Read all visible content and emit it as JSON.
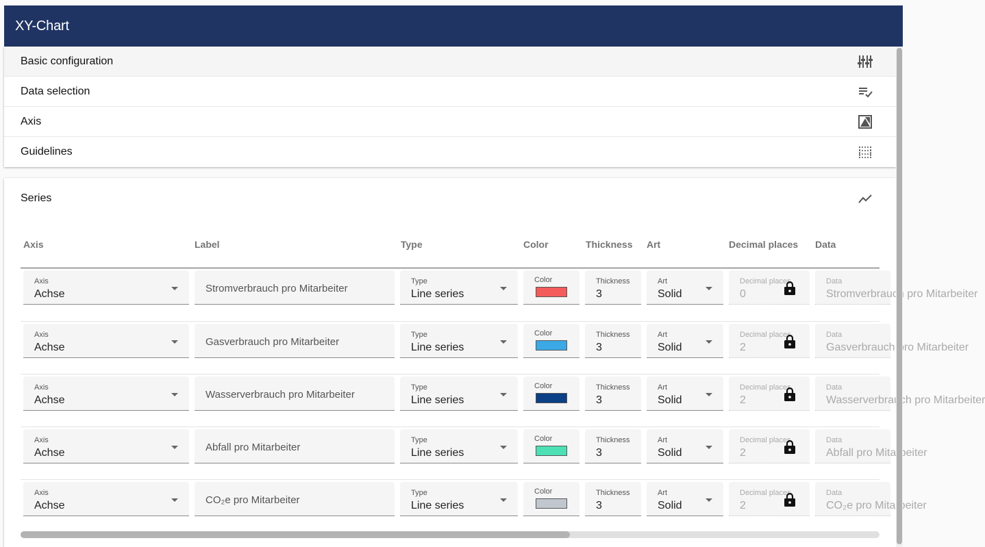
{
  "header": {
    "title": "XY-Chart"
  },
  "accordion": [
    {
      "label": "Basic configuration",
      "icon": "tune-icon"
    },
    {
      "label": "Data selection",
      "icon": "playlist-check-icon"
    },
    {
      "label": "Axis",
      "icon": "axis-icon"
    },
    {
      "label": "Guidelines",
      "icon": "guidelines-icon"
    }
  ],
  "series": {
    "title": "Series",
    "icon": "line-chart-icon",
    "columns": [
      "Axis",
      "Label",
      "Type",
      "Color",
      "Thickness",
      "Art",
      "Decimal places",
      "Data"
    ],
    "field_labels": {
      "axis": "Axis",
      "type": "Type",
      "color": "Color",
      "thickness": "Thickness",
      "art": "Art",
      "decimal": "Decimal places",
      "data": "Data"
    },
    "rows": [
      {
        "axis": "Achse",
        "label": "Stromverbrauch pro Mitarbeiter",
        "type": "Line series",
        "color": "#f45b5b",
        "thickness": "3",
        "art": "Solid",
        "decimal": "0",
        "data": "Stromverbrauch pro Mitarbeiter"
      },
      {
        "axis": "Achse",
        "label": "Gasverbrauch pro Mitarbeiter",
        "type": "Line series",
        "color": "#3ba9e6",
        "thickness": "3",
        "art": "Solid",
        "decimal": "2",
        "data": "Gasverbrauch pro Mitarbeiter"
      },
      {
        "axis": "Achse",
        "label": "Wasserverbrauch pro Mitarbeiter",
        "type": "Line series",
        "color": "#0b3f86",
        "thickness": "3",
        "art": "Solid",
        "decimal": "2",
        "data": "Wasserverbrauch pro Mitarbeiter"
      },
      {
        "axis": "Achse",
        "label": "Abfall pro Mitarbeiter",
        "type": "Line series",
        "color": "#4ee0b5",
        "thickness": "3",
        "art": "Solid",
        "decimal": "2",
        "data": "Abfall pro Mitarbeiter"
      },
      {
        "axis": "Achse",
        "label": "CO₂e pro Mitarbeiter",
        "type": "Line series",
        "color": "#c0c7cf",
        "thickness": "3",
        "art": "Solid",
        "decimal": "2",
        "data": "CO₂e pro Mitarbeiter"
      }
    ]
  }
}
